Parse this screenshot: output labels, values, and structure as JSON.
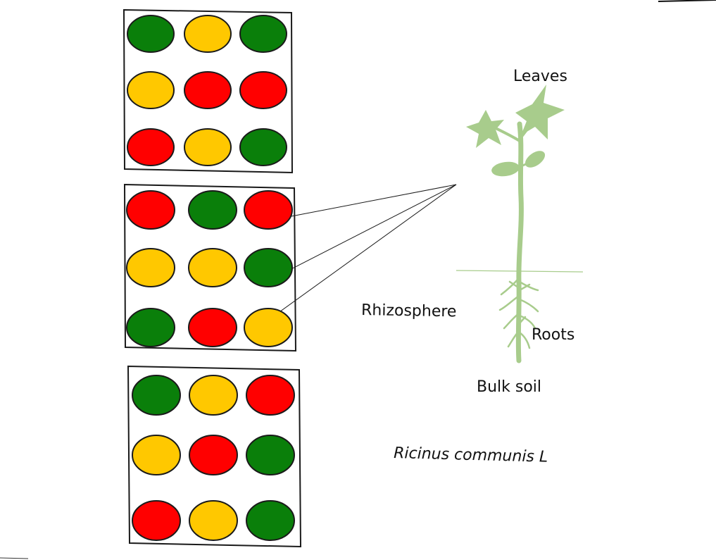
{
  "labels": {
    "leaves": "Leaves",
    "rhizosphere": "Rhizosphere",
    "roots": "Roots",
    "bulk_soil": "Bulk soil",
    "species": "Ricinus communis L"
  },
  "colors": {
    "green": "#0a7f0a",
    "yellow": "#ffc800",
    "red": "#ff0000",
    "plant": "#a8cc8c"
  },
  "grids": [
    {
      "name": "grid-top",
      "cells": [
        [
          "green",
          "yellow",
          "green"
        ],
        [
          "yellow",
          "red",
          "red"
        ],
        [
          "red",
          "yellow",
          "green"
        ]
      ]
    },
    {
      "name": "grid-middle",
      "cells": [
        [
          "red",
          "green",
          "red"
        ],
        [
          "yellow",
          "yellow",
          "green"
        ],
        [
          "green",
          "red",
          "yellow"
        ]
      ]
    },
    {
      "name": "grid-bottom",
      "cells": [
        [
          "green",
          "yellow",
          "red"
        ],
        [
          "yellow",
          "red",
          "green"
        ],
        [
          "red",
          "yellow",
          "green"
        ]
      ]
    }
  ]
}
